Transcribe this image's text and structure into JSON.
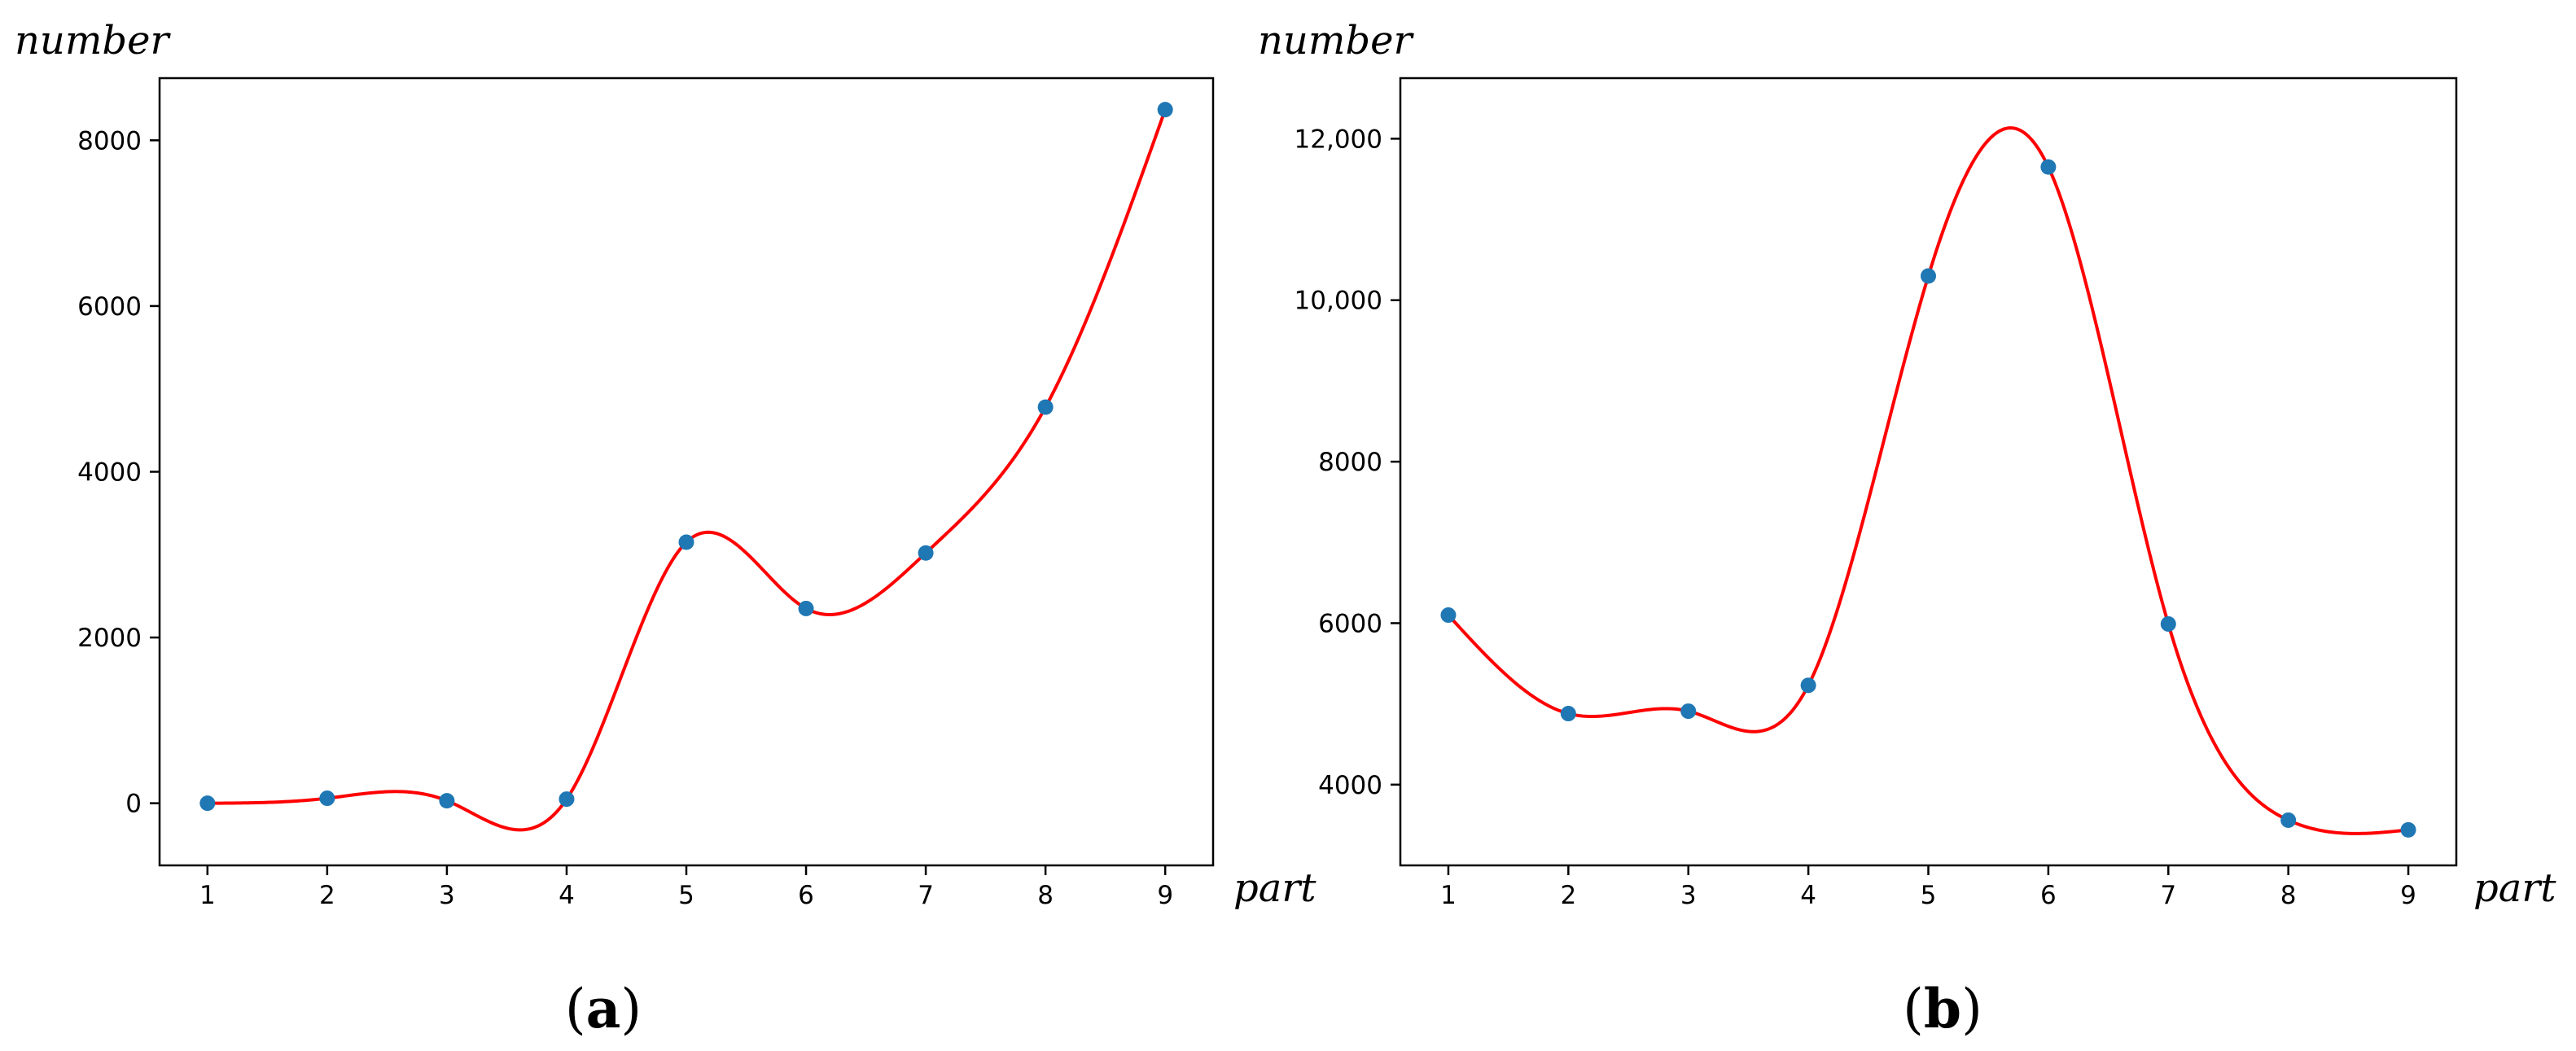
{
  "chart_data": [
    {
      "type": "line",
      "panel_label": "a",
      "xlabel": "part",
      "ylabel": "number",
      "x": [
        1,
        2,
        3,
        4,
        5,
        6,
        7,
        8,
        9
      ],
      "xlim": [
        0.6,
        9.4
      ],
      "ylim": [
        -750,
        8750
      ],
      "x_ticks": [
        1,
        2,
        3,
        4,
        5,
        6,
        7,
        8,
        9
      ],
      "y_ticks": [
        0,
        2000,
        4000,
        6000,
        8000
      ],
      "y_tick_labels": [
        "0",
        "2000",
        "4000",
        "6000",
        "8000"
      ],
      "grid": false,
      "series": [
        {
          "kind": "points",
          "color": "#1f77b4",
          "values": [
            0,
            60,
            30,
            50,
            3150,
            2350,
            3020,
            4780,
            8370
          ]
        },
        {
          "kind": "smooth-curve",
          "color": "#ff0000",
          "values": [
            0,
            60,
            30,
            50,
            3150,
            2350,
            3020,
            4780,
            8370
          ]
        }
      ]
    },
    {
      "type": "line",
      "panel_label": "b",
      "xlabel": "part",
      "ylabel": "number",
      "x": [
        1,
        2,
        3,
        4,
        5,
        6,
        7,
        8,
        9
      ],
      "xlim": [
        0.6,
        9.4
      ],
      "ylim": [
        3000,
        12750
      ],
      "x_ticks": [
        1,
        2,
        3,
        4,
        5,
        6,
        7,
        8,
        9
      ],
      "y_ticks": [
        4000,
        6000,
        8000,
        10000,
        12000
      ],
      "y_tick_labels": [
        "4000",
        "6000",
        "8000",
        "10,000",
        "12,000"
      ],
      "grid": false,
      "series": [
        {
          "kind": "points",
          "color": "#1f77b4",
          "values": [
            6100,
            4880,
            4910,
            5230,
            10300,
            11650,
            5990,
            3560,
            3440
          ]
        },
        {
          "kind": "smooth-curve",
          "color": "#ff0000",
          "values": [
            6100,
            4880,
            4910,
            5230,
            10300,
            11650,
            5990,
            3560,
            3440
          ]
        }
      ]
    }
  ]
}
